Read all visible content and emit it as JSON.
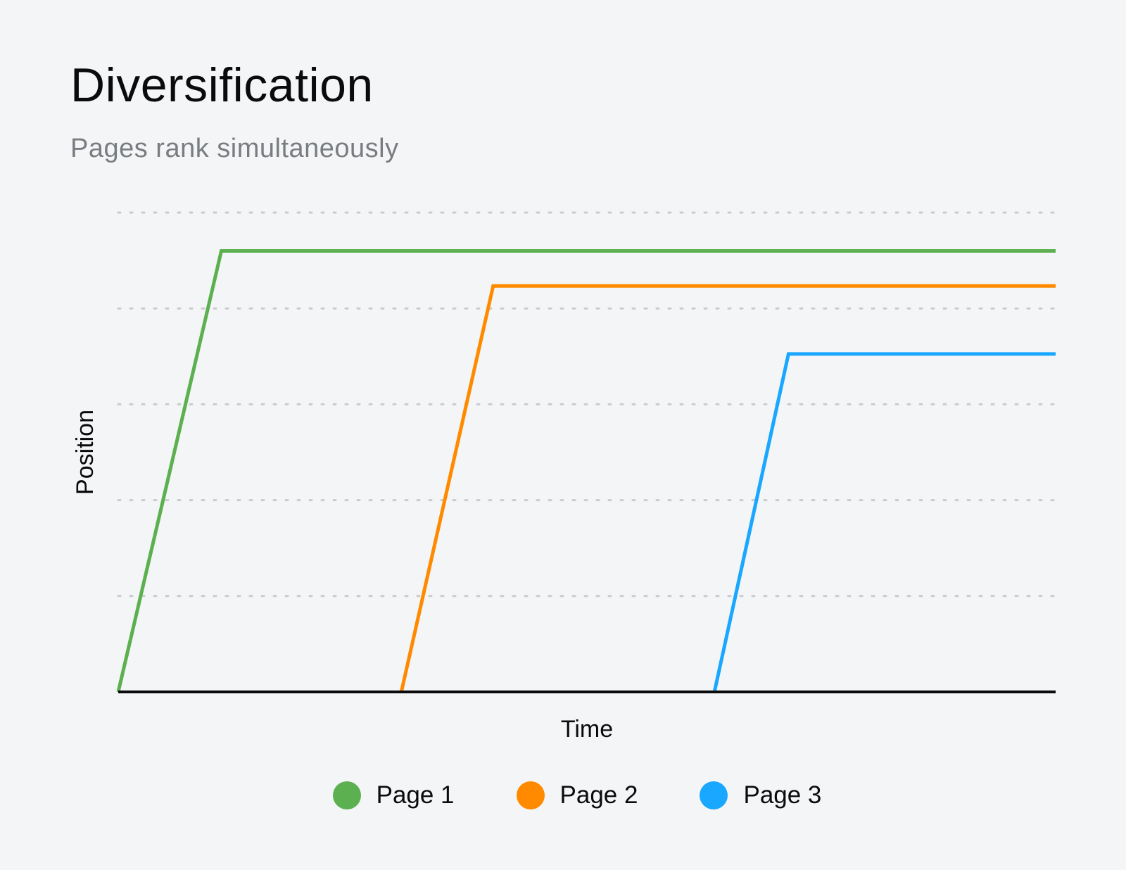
{
  "header": {
    "title": "Diversification",
    "subtitle": "Pages rank simultaneously"
  },
  "chart_data": {
    "type": "line",
    "title": "Diversification",
    "subtitle": "Pages rank simultaneously",
    "xlabel": "Time",
    "ylabel": "Position",
    "xlim": [
      0,
      100
    ],
    "ylim": [
      0,
      100
    ],
    "grid": {
      "y": true,
      "style": "dotted",
      "lines": [
        20,
        40,
        60,
        80,
        100
      ]
    },
    "legend_position": "bottom-center",
    "series": [
      {
        "name": "Page 1",
        "color": "#5cb04f",
        "x": [
          0,
          11,
          100
        ],
        "y": [
          0,
          92,
          92
        ]
      },
      {
        "name": "Page 2",
        "color": "#ff8a00",
        "x": [
          30.2,
          40,
          100
        ],
        "y": [
          0,
          84.7,
          84.7
        ]
      },
      {
        "name": "Page 3",
        "color": "#1aa7ff",
        "x": [
          63.6,
          71.5,
          100
        ],
        "y": [
          0,
          70.5,
          70.5
        ]
      }
    ]
  },
  "colors": {
    "background": "#f4f5f7",
    "axis": "#0b0b0b",
    "grid": "#c9cbcd",
    "subtitle": "#7a7d80"
  }
}
